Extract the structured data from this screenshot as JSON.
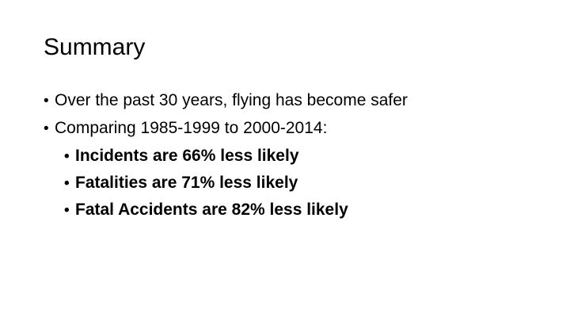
{
  "slide": {
    "title": "Summary",
    "bullets": [
      {
        "text": "Over the past 30 years, flying has become safer"
      },
      {
        "text": "Comparing 1985-1999 to 2000-2014:",
        "sub": [
          {
            "text": "Incidents are 66% less likely"
          },
          {
            "text": "Fatalities are 71% less likely"
          },
          {
            "text": "Fatal Accidents are 82% less likely"
          }
        ]
      }
    ],
    "bullet_glyph": "•"
  }
}
